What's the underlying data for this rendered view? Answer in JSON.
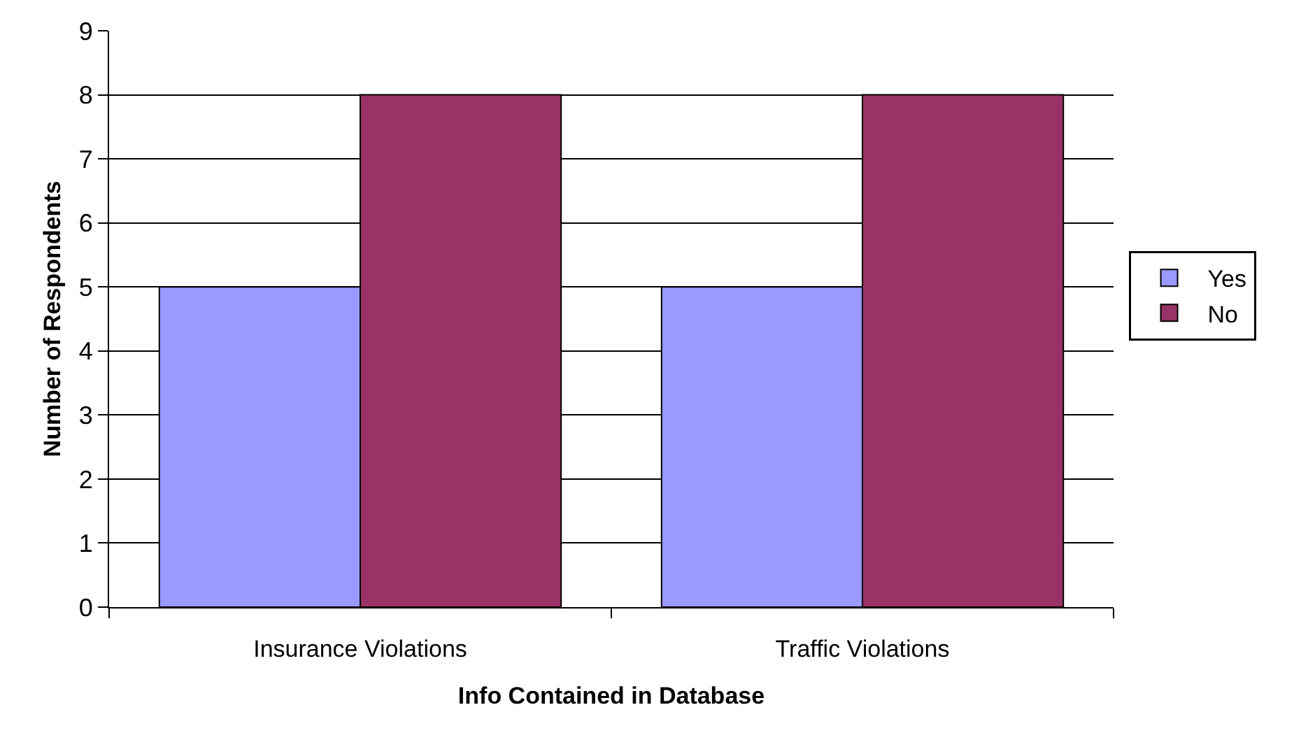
{
  "chart_data": {
    "type": "bar",
    "xlabel": "Info Contained in Database",
    "ylabel": "Number of Respondents",
    "categories": [
      "Insurance Violations",
      "Traffic Violations"
    ],
    "series": [
      {
        "name": "Yes",
        "color": "#9999ff",
        "values": [
          5,
          5
        ]
      },
      {
        "name": "No",
        "color": "#993366",
        "values": [
          8,
          8
        ]
      }
    ],
    "ylim": [
      0,
      9
    ],
    "yticks": [
      0,
      1,
      2,
      3,
      4,
      5,
      6,
      7,
      8,
      9
    ],
    "grid": "y",
    "legend": "right"
  }
}
